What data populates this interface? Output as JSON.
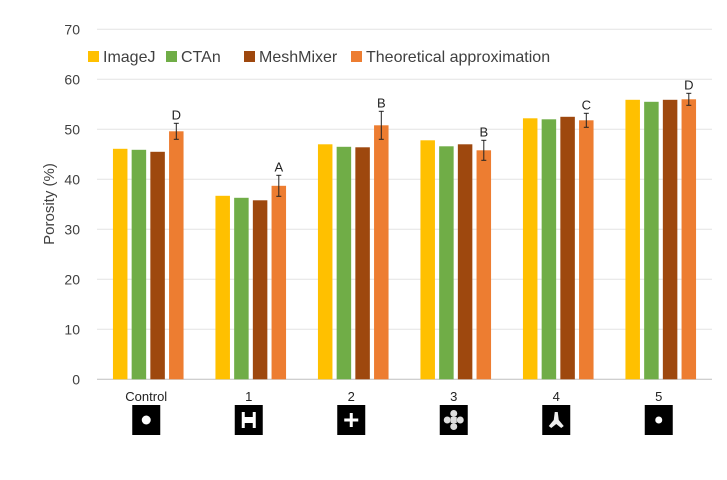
{
  "chart_data": {
    "type": "bar",
    "title": "",
    "xlabel": "",
    "ylabel": "Porosity (%)",
    "ylim": [
      0,
      70
    ],
    "yticks": [
      0,
      10,
      20,
      30,
      40,
      50,
      60,
      70
    ],
    "grid": true,
    "legend_position": "top",
    "categories": [
      "Control",
      "1",
      "2",
      "3",
      "4",
      "5"
    ],
    "category_icons": [
      "circle-pore-icon",
      "h-shape-pore-icon",
      "cross-pore-icon",
      "clover-pore-icon",
      "tripod-pore-icon",
      "small-circle-pore-icon"
    ],
    "series": [
      {
        "name": "ImageJ",
        "color": "#FFC000",
        "values": [
          46.1,
          36.7,
          47.0,
          47.8,
          52.2,
          55.9
        ]
      },
      {
        "name": "CTAn",
        "color": "#70AD47",
        "values": [
          45.9,
          36.3,
          46.5,
          46.6,
          52.0,
          55.5
        ]
      },
      {
        "name": "MeshMixer",
        "color": "#9E480E",
        "values": [
          45.5,
          35.8,
          46.4,
          47.0,
          52.5,
          55.9
        ]
      },
      {
        "name": "Theoretical approximation",
        "color": "#ED7D31",
        "values": [
          49.6,
          38.7,
          50.8,
          45.8,
          51.8,
          56.0
        ],
        "error": [
          1.6,
          2.1,
          2.8,
          2.0,
          1.4,
          1.2
        ],
        "annotations": [
          "D",
          "A",
          "B",
          "B",
          "C",
          "D"
        ]
      }
    ]
  }
}
